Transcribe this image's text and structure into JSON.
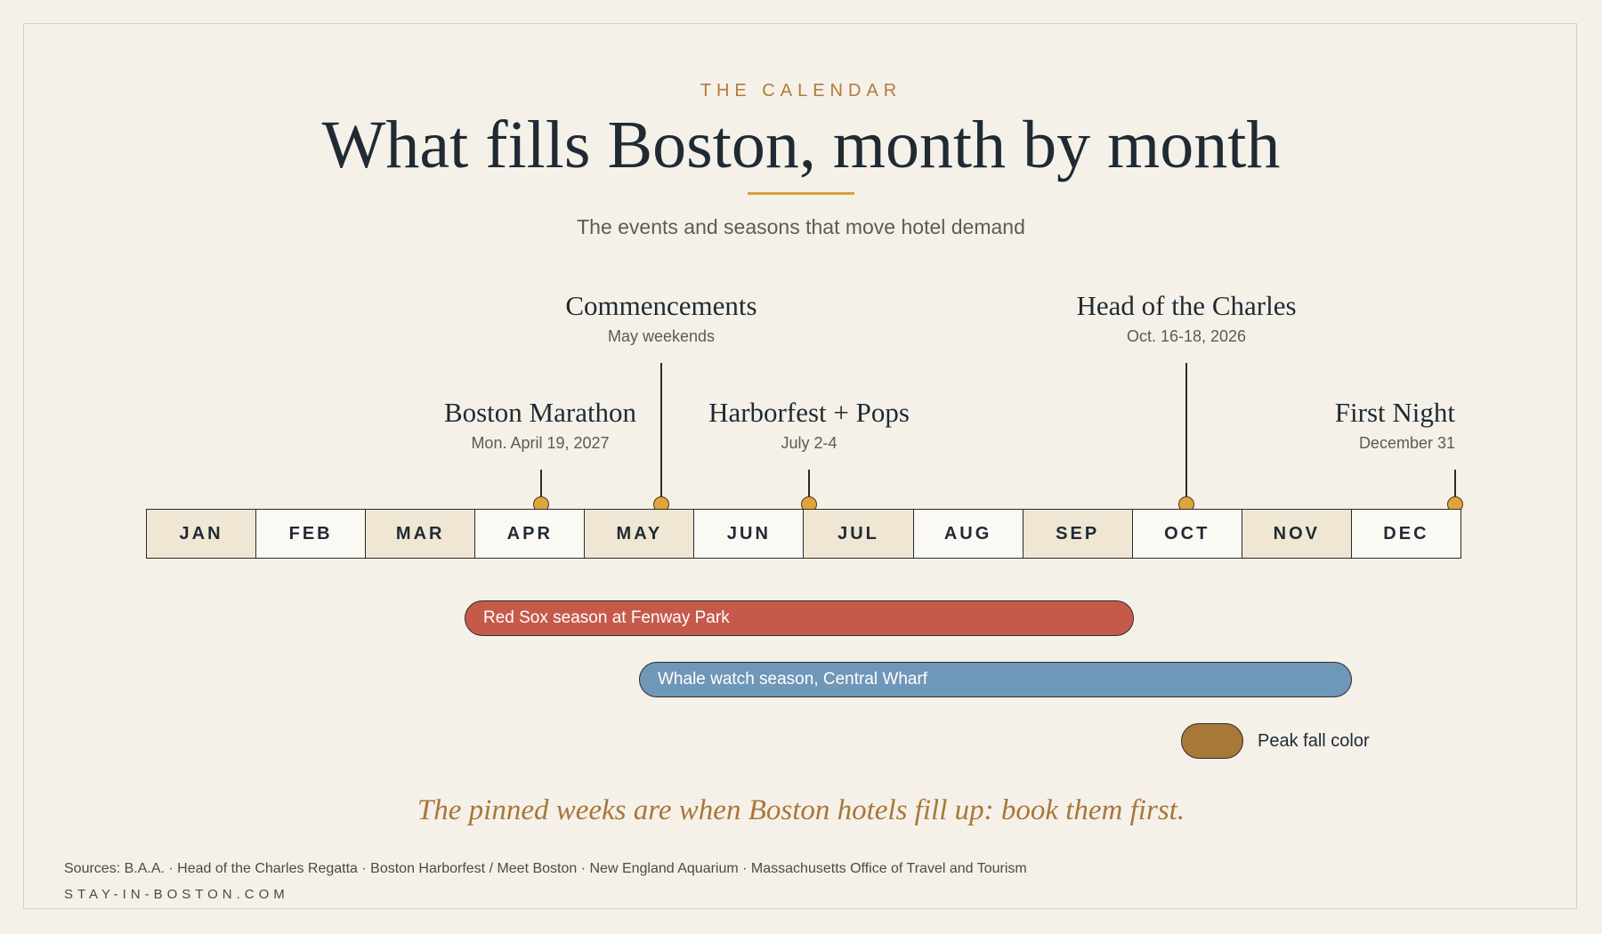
{
  "header": {
    "eyebrow": "THE CALENDAR",
    "title": "What fills Boston, month by month",
    "subtitle": "The events and seasons that move hotel demand"
  },
  "months": [
    "JAN",
    "FEB",
    "MAR",
    "APR",
    "MAY",
    "JUN",
    "JUL",
    "AUG",
    "SEP",
    "OCT",
    "NOV",
    "DEC"
  ],
  "events": [
    {
      "name": "Boston Marathon",
      "date": "Mon. April 19, 2027",
      "month": "APR"
    },
    {
      "name": "Commencements",
      "date": "May weekends",
      "month": "MAY"
    },
    {
      "name": "Harborfest + Pops",
      "date": "July 2-4",
      "month": "JUL"
    },
    {
      "name": "Head of the Charles",
      "date": "Oct. 16-18, 2026",
      "month": "OCT"
    },
    {
      "name": "First Night",
      "date": "December 31",
      "month": "DEC"
    }
  ],
  "seasons": [
    {
      "label": "Red Sox season at Fenway Park",
      "start": "APR",
      "end": "SEP",
      "color": "#c65a4a"
    },
    {
      "label": "Whale watch season, Central Wharf",
      "start": "MAY",
      "end": "NOV",
      "color": "#6f97b8"
    }
  ],
  "legend": {
    "label": "Peak fall color",
    "color": "#a87838"
  },
  "tagline": "The pinned weeks are when Boston hotels fill up: book them first.",
  "footer": {
    "sources": "Sources: B.A.A. · Head of the Charles Regatta · Boston Harborfest / Meet Boston · New England Aquarium · Massachusetts Office of Travel and Tourism",
    "site": "STAY-IN-BOSTON.COM"
  },
  "colors": {
    "accent": "#d4a23c",
    "pin": "#e0a43a",
    "background": "#f5f1e8"
  }
}
